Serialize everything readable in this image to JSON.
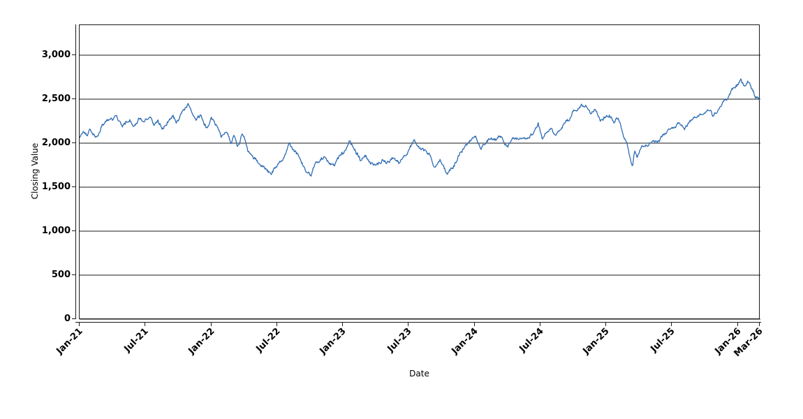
{
  "page": {
    "background": "#ffffff"
  },
  "chart_data": {
    "type": "line",
    "title": "",
    "xlabel": "Date",
    "ylabel": "Closing Value",
    "legend": "none",
    "grid": "horizontal black gridlines at each y tick",
    "x_axis": {
      "tick_labels": [
        "Jan-21",
        "Jul-21",
        "Jan-22",
        "Jul-22",
        "Jan-23",
        "Jul-23",
        "Jan-24",
        "Jul-24",
        "Jan-25",
        "Jul-25",
        "Jan-26",
        "Mar-26"
      ],
      "tick_months": [
        0,
        6,
        12,
        18,
        24,
        30,
        36,
        42,
        48,
        54,
        60,
        62
      ],
      "range_months": [
        0,
        62
      ],
      "label_rotation_deg": -45
    },
    "y_axis": {
      "tick_values": [
        0,
        500,
        1000,
        1500,
        2000,
        2500,
        3000
      ],
      "tick_labels": [
        "0",
        "500",
        "1,000",
        "1,500",
        "2,000",
        "2,500",
        "3,000"
      ],
      "range": [
        0,
        3341
      ]
    },
    "series": [
      {
        "name": "Closing Value",
        "color": "#2f6cb3",
        "line_width": 1.3,
        "style": "noisy daily closing-price line",
        "points_per_month": 21,
        "noise": {
          "ar_decay": 0.85,
          "shock": 30,
          "white": 12,
          "seed": 20240101
        },
        "anchors_month_value": [
          [
            0,
            2060
          ],
          [
            0.3,
            2130
          ],
          [
            0.7,
            2100
          ],
          [
            1,
            2160
          ],
          [
            1.3,
            2120
          ],
          [
            1.6,
            2060
          ],
          [
            2,
            2200
          ],
          [
            2.5,
            2260
          ],
          [
            3,
            2300
          ],
          [
            3.3,
            2330
          ],
          [
            3.9,
            2180
          ],
          [
            4.3,
            2240
          ],
          [
            4.6,
            2280
          ],
          [
            4.9,
            2230
          ],
          [
            5.5,
            2300
          ],
          [
            5.9,
            2230
          ],
          [
            6.5,
            2290
          ],
          [
            6.8,
            2220
          ],
          [
            7.1,
            2260
          ],
          [
            7.6,
            2180
          ],
          [
            8.1,
            2280
          ],
          [
            8.5,
            2320
          ],
          [
            8.8,
            2260
          ],
          [
            9.2,
            2330
          ],
          [
            9.5,
            2380
          ],
          [
            9.9,
            2450
          ],
          [
            10.3,
            2350
          ],
          [
            10.6,
            2280
          ],
          [
            11,
            2320
          ],
          [
            11.6,
            2180
          ],
          [
            12,
            2300
          ],
          [
            12.6,
            2150
          ],
          [
            12.9,
            2050
          ],
          [
            13.3,
            2150
          ],
          [
            13.8,
            2000
          ],
          [
            14.1,
            2080
          ],
          [
            14.4,
            1980
          ],
          [
            14.8,
            2100
          ],
          [
            15.4,
            1900
          ],
          [
            16,
            1800
          ],
          [
            16.7,
            1720
          ],
          [
            17.2,
            1690
          ],
          [
            17.5,
            1650
          ],
          [
            18,
            1750
          ],
          [
            18.6,
            1870
          ],
          [
            19.1,
            2010
          ],
          [
            19.4,
            1950
          ],
          [
            20,
            1850
          ],
          [
            20.6,
            1700
          ],
          [
            21.1,
            1650
          ],
          [
            21.7,
            1780
          ],
          [
            22.3,
            1860
          ],
          [
            22.7,
            1820
          ],
          [
            23.2,
            1760
          ],
          [
            23.7,
            1830
          ],
          [
            24.1,
            1900
          ],
          [
            24.6,
            2030
          ],
          [
            25.1,
            1950
          ],
          [
            25.6,
            1820
          ],
          [
            26,
            1880
          ],
          [
            26.5,
            1760
          ],
          [
            27.2,
            1750
          ],
          [
            27.7,
            1810
          ],
          [
            28.2,
            1780
          ],
          [
            28.7,
            1840
          ],
          [
            29.2,
            1780
          ],
          [
            29.7,
            1860
          ],
          [
            30.1,
            1950
          ],
          [
            30.5,
            2010
          ],
          [
            31,
            1940
          ],
          [
            31.5,
            1900
          ],
          [
            32,
            1850
          ],
          [
            32.4,
            1730
          ],
          [
            32.9,
            1790
          ],
          [
            33.5,
            1640
          ],
          [
            34,
            1710
          ],
          [
            34.4,
            1810
          ],
          [
            34.8,
            1920
          ],
          [
            35.3,
            2000
          ],
          [
            35.8,
            2060
          ],
          [
            36.1,
            2090
          ],
          [
            36.6,
            1960
          ],
          [
            37.1,
            2010
          ],
          [
            37.5,
            2060
          ],
          [
            38,
            2040
          ],
          [
            38.5,
            2070
          ],
          [
            39,
            1950
          ],
          [
            39.5,
            2050
          ],
          [
            40,
            2020
          ],
          [
            40.5,
            2060
          ],
          [
            41,
            2050
          ],
          [
            41.5,
            2150
          ],
          [
            41.8,
            2250
          ],
          [
            42.2,
            2060
          ],
          [
            42.6,
            2150
          ],
          [
            43,
            2210
          ],
          [
            43.4,
            2110
          ],
          [
            43.8,
            2170
          ],
          [
            44.3,
            2250
          ],
          [
            44.6,
            2280
          ],
          [
            45.1,
            2380
          ],
          [
            45.6,
            2400
          ],
          [
            46.2,
            2440
          ],
          [
            46.6,
            2350
          ],
          [
            47,
            2390
          ],
          [
            47.5,
            2280
          ],
          [
            47.9,
            2300
          ],
          [
            48.3,
            2330
          ],
          [
            48.7,
            2250
          ],
          [
            49.1,
            2300
          ],
          [
            49.5,
            2140
          ],
          [
            49.9,
            2000
          ],
          [
            50.2,
            1850
          ],
          [
            50.4,
            1740
          ],
          [
            50.6,
            1920
          ],
          [
            50.8,
            1820
          ],
          [
            51.2,
            1950
          ],
          [
            51.8,
            2000
          ],
          [
            52.3,
            2060
          ],
          [
            52.7,
            2020
          ],
          [
            53.2,
            2090
          ],
          [
            53.8,
            2150
          ],
          [
            54.4,
            2170
          ],
          [
            54.8,
            2220
          ],
          [
            55.2,
            2180
          ],
          [
            55.7,
            2250
          ],
          [
            56.1,
            2280
          ],
          [
            56.5,
            2330
          ],
          [
            57,
            2380
          ],
          [
            57.3,
            2420
          ],
          [
            57.7,
            2310
          ],
          [
            58.2,
            2400
          ],
          [
            58.6,
            2460
          ],
          [
            59,
            2500
          ],
          [
            59.5,
            2590
          ],
          [
            59.9,
            2650
          ],
          [
            60.3,
            2700
          ],
          [
            60.6,
            2640
          ],
          [
            60.9,
            2690
          ],
          [
            61.2,
            2610
          ],
          [
            61.6,
            2520
          ],
          [
            62,
            2480
          ]
        ]
      }
    ]
  }
}
